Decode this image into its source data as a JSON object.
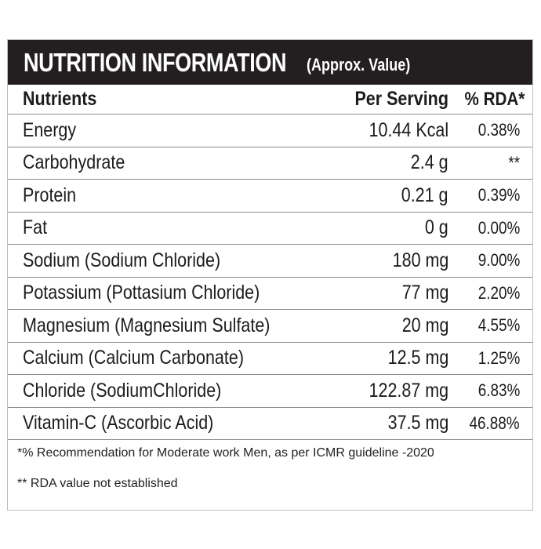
{
  "title": {
    "main": "NUTRITION INFORMATION",
    "sub": "(Approx. Value)"
  },
  "columns": {
    "nutrient": "Nutrients",
    "per_serving": "Per Serving",
    "rda": "% RDA*"
  },
  "rows": [
    {
      "nutrient": "Energy",
      "per_serving": "10.44 Kcal",
      "rda": "0.38%"
    },
    {
      "nutrient": "Carbohydrate",
      "per_serving": "2.4 g",
      "rda": "**"
    },
    {
      "nutrient": "Protein",
      "per_serving": "0.21 g",
      "rda": "0.39%"
    },
    {
      "nutrient": "Fat",
      "per_serving": "0 g",
      "rda": "0.00%"
    },
    {
      "nutrient": "Sodium (Sodium Chloride)",
      "per_serving": "180 mg",
      "rda": "9.00%"
    },
    {
      "nutrient": "Potassium (Pottasium Chloride)",
      "per_serving": "77 mg",
      "rda": "2.20%"
    },
    {
      "nutrient": "Magnesium (Magnesium Sulfate)",
      "per_serving": "20 mg",
      "rda": "4.55%"
    },
    {
      "nutrient": "Calcium (Calcium Carbonate)",
      "per_serving": "12.5 mg",
      "rda": "1.25%"
    },
    {
      "nutrient": "Chloride (SodiumChloride)",
      "per_serving": "122.87 mg",
      "rda": "6.83%"
    },
    {
      "nutrient": "Vitamin-C (Ascorbic Acid)",
      "per_serving": "37.5 mg",
      "rda": "46.88%"
    }
  ],
  "footnotes": [
    "*% Recommendation for Moderate work Men, as per ICMR guideline -2020",
    "** RDA value not established"
  ],
  "colors": {
    "title_bar": "#231f20",
    "title_text": "#ffffff",
    "rule": "#8a8a8a"
  }
}
